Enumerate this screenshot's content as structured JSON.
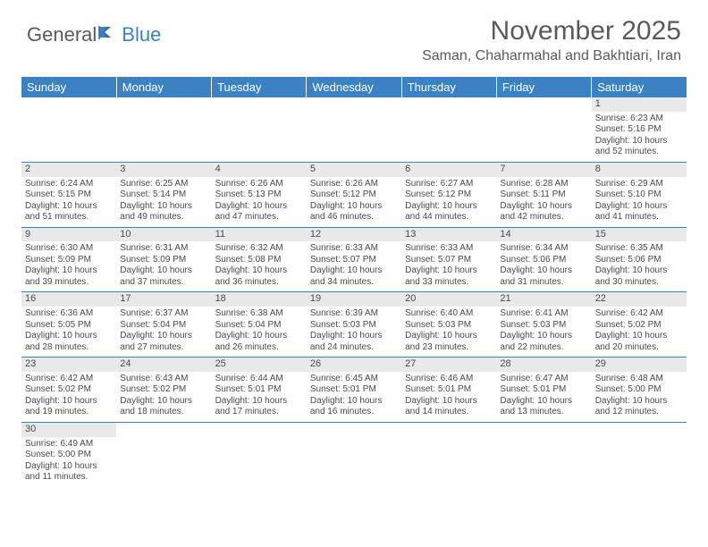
{
  "logo": {
    "general": "General",
    "blue": "Blue"
  },
  "title": "November 2025",
  "location": "Saman, Chaharmahal and Bakhtiari, Iran",
  "colors": {
    "header_bg": "#3b82c4",
    "text": "#5a5a5a",
    "cell_text": "#4a4a4a",
    "daynum_bg": "#e9e9e9"
  },
  "day_headers": [
    "Sunday",
    "Monday",
    "Tuesday",
    "Wednesday",
    "Thursday",
    "Friday",
    "Saturday"
  ],
  "weeks": [
    [
      null,
      null,
      null,
      null,
      null,
      null,
      {
        "n": "1",
        "sr": "Sunrise: 6:23 AM",
        "ss": "Sunset: 5:16 PM",
        "dl": "Daylight: 10 hours and 52 minutes."
      }
    ],
    [
      {
        "n": "2",
        "sr": "Sunrise: 6:24 AM",
        "ss": "Sunset: 5:15 PM",
        "dl": "Daylight: 10 hours and 51 minutes."
      },
      {
        "n": "3",
        "sr": "Sunrise: 6:25 AM",
        "ss": "Sunset: 5:14 PM",
        "dl": "Daylight: 10 hours and 49 minutes."
      },
      {
        "n": "4",
        "sr": "Sunrise: 6:26 AM",
        "ss": "Sunset: 5:13 PM",
        "dl": "Daylight: 10 hours and 47 minutes."
      },
      {
        "n": "5",
        "sr": "Sunrise: 6:26 AM",
        "ss": "Sunset: 5:12 PM",
        "dl": "Daylight: 10 hours and 46 minutes."
      },
      {
        "n": "6",
        "sr": "Sunrise: 6:27 AM",
        "ss": "Sunset: 5:12 PM",
        "dl": "Daylight: 10 hours and 44 minutes."
      },
      {
        "n": "7",
        "sr": "Sunrise: 6:28 AM",
        "ss": "Sunset: 5:11 PM",
        "dl": "Daylight: 10 hours and 42 minutes."
      },
      {
        "n": "8",
        "sr": "Sunrise: 6:29 AM",
        "ss": "Sunset: 5:10 PM",
        "dl": "Daylight: 10 hours and 41 minutes."
      }
    ],
    [
      {
        "n": "9",
        "sr": "Sunrise: 6:30 AM",
        "ss": "Sunset: 5:09 PM",
        "dl": "Daylight: 10 hours and 39 minutes."
      },
      {
        "n": "10",
        "sr": "Sunrise: 6:31 AM",
        "ss": "Sunset: 5:09 PM",
        "dl": "Daylight: 10 hours and 37 minutes."
      },
      {
        "n": "11",
        "sr": "Sunrise: 6:32 AM",
        "ss": "Sunset: 5:08 PM",
        "dl": "Daylight: 10 hours and 36 minutes."
      },
      {
        "n": "12",
        "sr": "Sunrise: 6:33 AM",
        "ss": "Sunset: 5:07 PM",
        "dl": "Daylight: 10 hours and 34 minutes."
      },
      {
        "n": "13",
        "sr": "Sunrise: 6:33 AM",
        "ss": "Sunset: 5:07 PM",
        "dl": "Daylight: 10 hours and 33 minutes."
      },
      {
        "n": "14",
        "sr": "Sunrise: 6:34 AM",
        "ss": "Sunset: 5:06 PM",
        "dl": "Daylight: 10 hours and 31 minutes."
      },
      {
        "n": "15",
        "sr": "Sunrise: 6:35 AM",
        "ss": "Sunset: 5:06 PM",
        "dl": "Daylight: 10 hours and 30 minutes."
      }
    ],
    [
      {
        "n": "16",
        "sr": "Sunrise: 6:36 AM",
        "ss": "Sunset: 5:05 PM",
        "dl": "Daylight: 10 hours and 28 minutes."
      },
      {
        "n": "17",
        "sr": "Sunrise: 6:37 AM",
        "ss": "Sunset: 5:04 PM",
        "dl": "Daylight: 10 hours and 27 minutes."
      },
      {
        "n": "18",
        "sr": "Sunrise: 6:38 AM",
        "ss": "Sunset: 5:04 PM",
        "dl": "Daylight: 10 hours and 26 minutes."
      },
      {
        "n": "19",
        "sr": "Sunrise: 6:39 AM",
        "ss": "Sunset: 5:03 PM",
        "dl": "Daylight: 10 hours and 24 minutes."
      },
      {
        "n": "20",
        "sr": "Sunrise: 6:40 AM",
        "ss": "Sunset: 5:03 PM",
        "dl": "Daylight: 10 hours and 23 minutes."
      },
      {
        "n": "21",
        "sr": "Sunrise: 6:41 AM",
        "ss": "Sunset: 5:03 PM",
        "dl": "Daylight: 10 hours and 22 minutes."
      },
      {
        "n": "22",
        "sr": "Sunrise: 6:42 AM",
        "ss": "Sunset: 5:02 PM",
        "dl": "Daylight: 10 hours and 20 minutes."
      }
    ],
    [
      {
        "n": "23",
        "sr": "Sunrise: 6:42 AM",
        "ss": "Sunset: 5:02 PM",
        "dl": "Daylight: 10 hours and 19 minutes."
      },
      {
        "n": "24",
        "sr": "Sunrise: 6:43 AM",
        "ss": "Sunset: 5:02 PM",
        "dl": "Daylight: 10 hours and 18 minutes."
      },
      {
        "n": "25",
        "sr": "Sunrise: 6:44 AM",
        "ss": "Sunset: 5:01 PM",
        "dl": "Daylight: 10 hours and 17 minutes."
      },
      {
        "n": "26",
        "sr": "Sunrise: 6:45 AM",
        "ss": "Sunset: 5:01 PM",
        "dl": "Daylight: 10 hours and 16 minutes."
      },
      {
        "n": "27",
        "sr": "Sunrise: 6:46 AM",
        "ss": "Sunset: 5:01 PM",
        "dl": "Daylight: 10 hours and 14 minutes."
      },
      {
        "n": "28",
        "sr": "Sunrise: 6:47 AM",
        "ss": "Sunset: 5:01 PM",
        "dl": "Daylight: 10 hours and 13 minutes."
      },
      {
        "n": "29",
        "sr": "Sunrise: 6:48 AM",
        "ss": "Sunset: 5:00 PM",
        "dl": "Daylight: 10 hours and 12 minutes."
      }
    ],
    [
      {
        "n": "30",
        "sr": "Sunrise: 6:49 AM",
        "ss": "Sunset: 5:00 PM",
        "dl": "Daylight: 10 hours and 11 minutes."
      },
      null,
      null,
      null,
      null,
      null,
      null
    ]
  ]
}
